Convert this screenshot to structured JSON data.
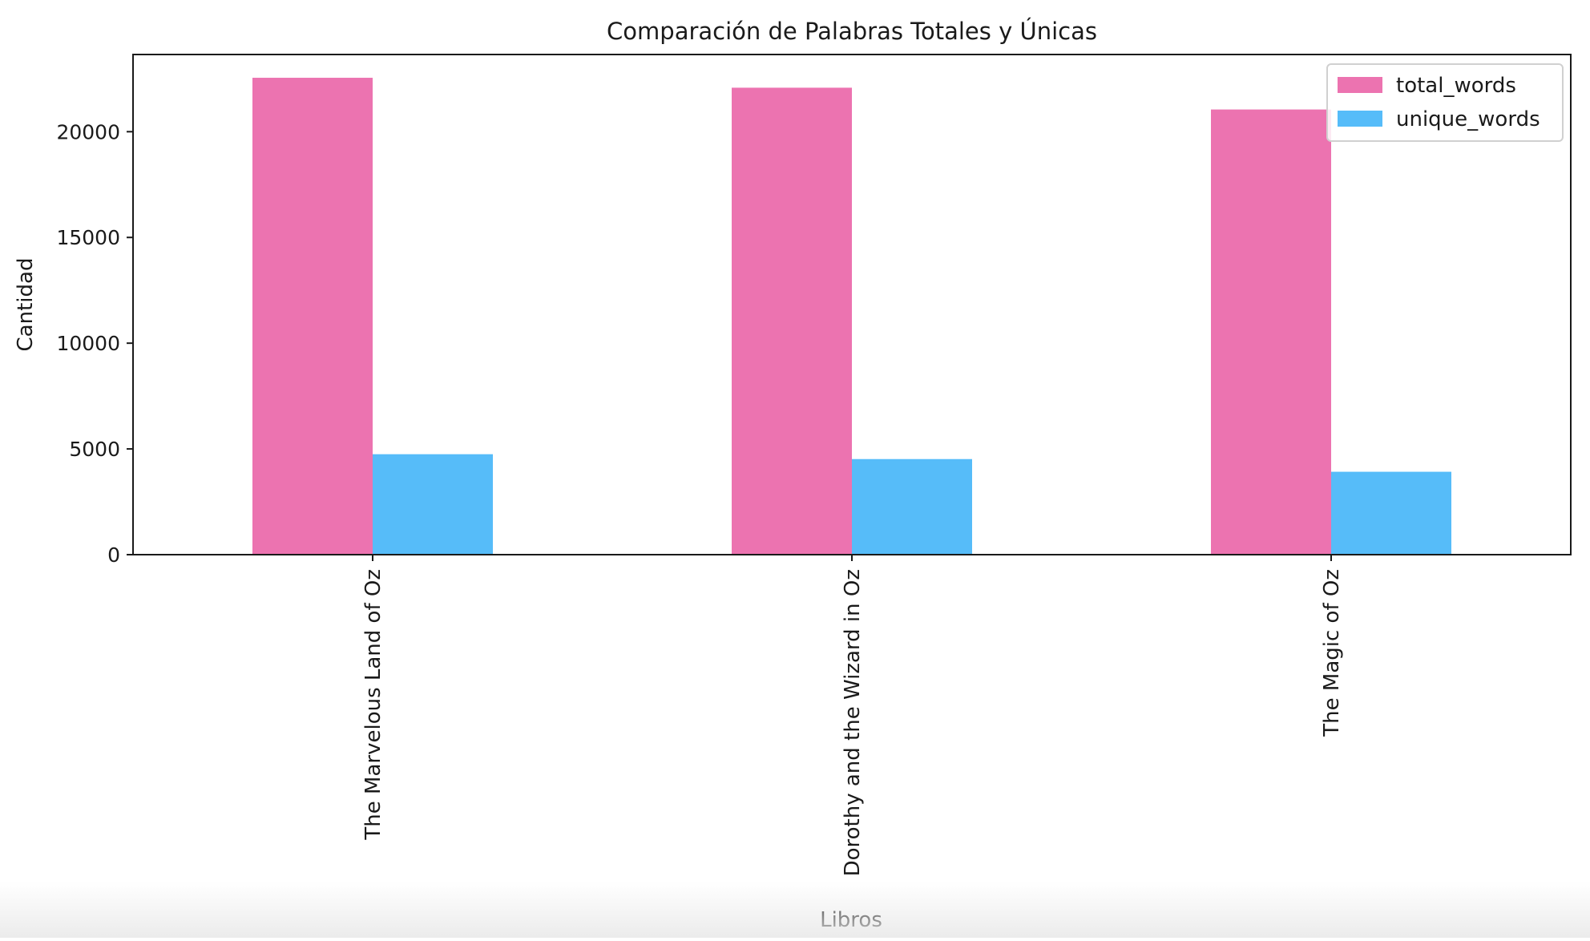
{
  "chart_data": {
    "type": "bar",
    "title": "Comparación de Palabras Totales y Únicas",
    "xlabel": "Libros",
    "ylabel": "Cantidad",
    "categories": [
      "The Marvelous Land of Oz",
      "Dorothy and the Wizard in Oz",
      "The Magic of Oz"
    ],
    "series": [
      {
        "name": "total_words",
        "color": "#ec73b0",
        "values": [
          22550,
          22080,
          21050
        ]
      },
      {
        "name": "unique_words",
        "color": "#56bcf9",
        "values": [
          4750,
          4520,
          3920
        ]
      }
    ],
    "ylim": [
      0,
      23650
    ],
    "yticks": [
      0,
      5000,
      10000,
      15000,
      20000
    ],
    "legend": "top-right",
    "grid": false
  }
}
